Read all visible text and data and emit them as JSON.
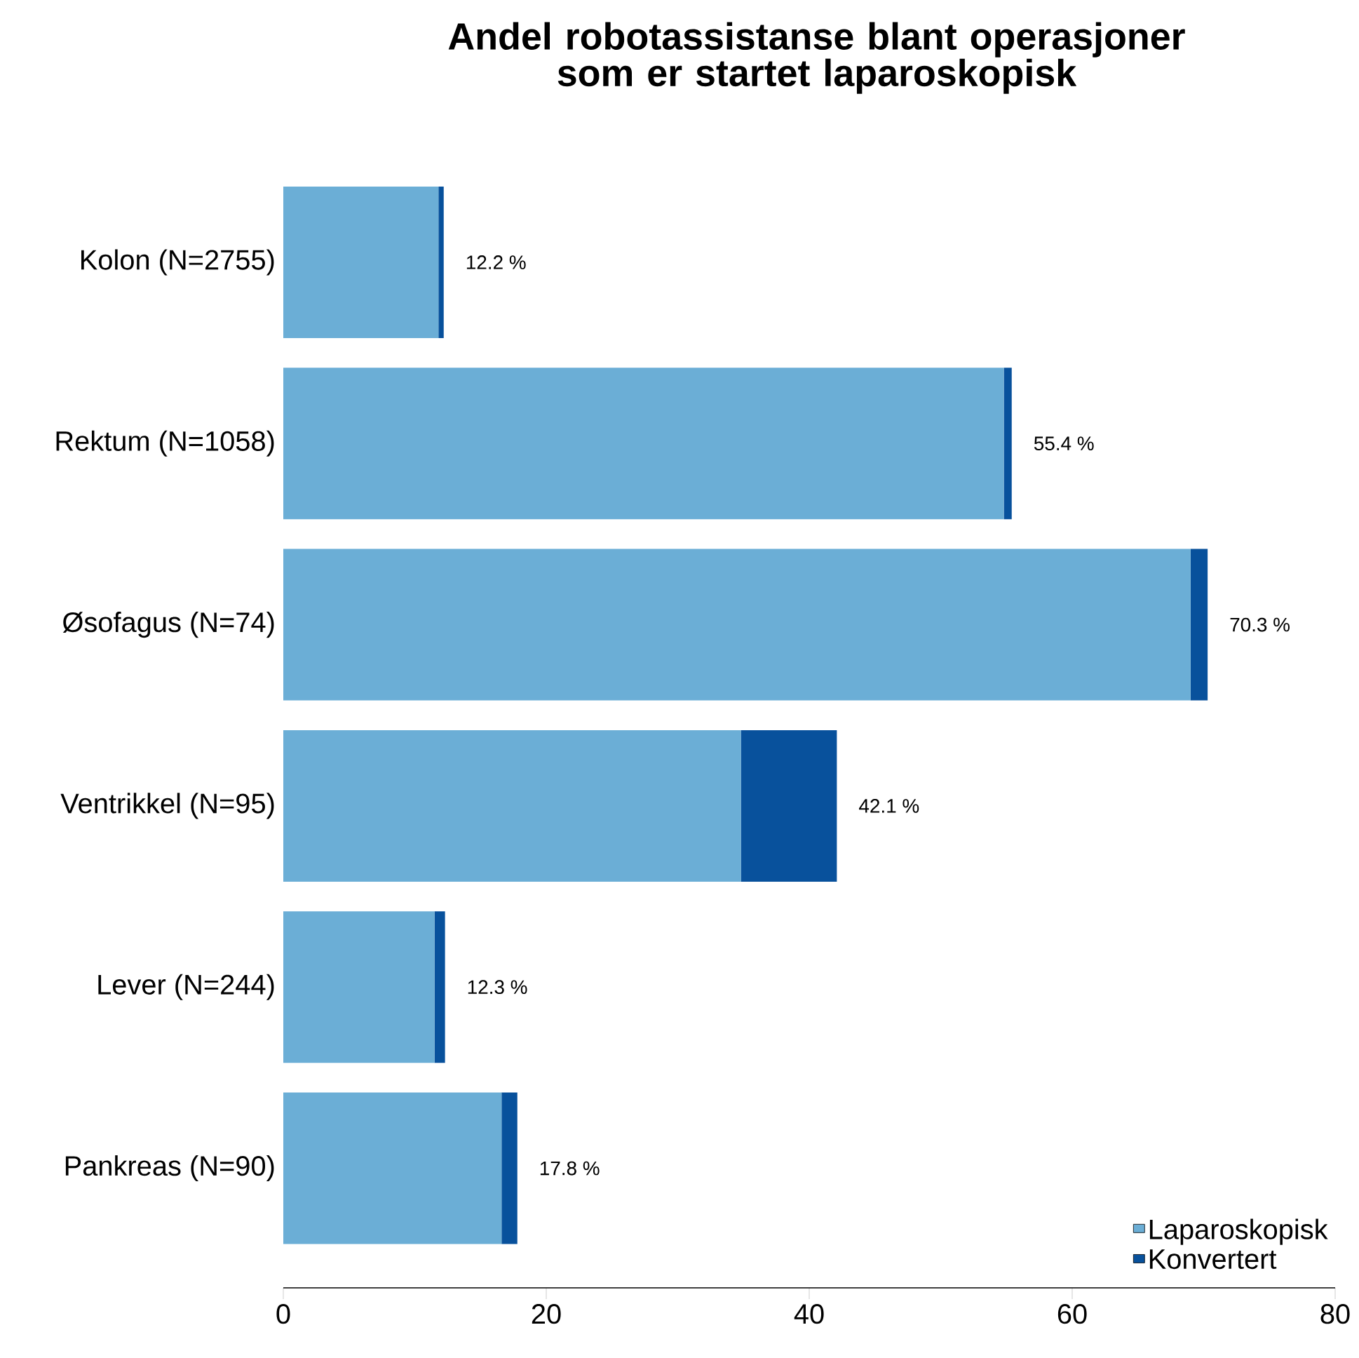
{
  "chart_data": {
    "type": "bar",
    "orientation": "horizontal",
    "stacked": true,
    "title": "Andel robotassistanse blant operasjoner som er startet laparoskopisk",
    "categories": [
      "Kolon (N=2755)",
      "Rektum (N=1058)",
      "Øsofagus (N=74)",
      "Ventrikkel (N=95)",
      "Lever (N=244)",
      "Pankreas (N=90)"
    ],
    "series": [
      {
        "name": "Laparoskopisk",
        "color": "#6baed6",
        "values": [
          11.8,
          54.8,
          69.0,
          34.8,
          11.5,
          16.6
        ]
      },
      {
        "name": "Konvertert",
        "color": "#08519c",
        "values": [
          0.4,
          0.6,
          1.3,
          7.3,
          0.8,
          1.2
        ]
      }
    ],
    "totals": [
      "12.2 %",
      "55.4 %",
      "70.3 %",
      "42.1 %",
      "12.3 %",
      "17.8 %"
    ],
    "xlim": [
      0,
      80
    ],
    "xticks": [
      0,
      20,
      40,
      60,
      80
    ],
    "grid": false,
    "legend": "bottom right"
  }
}
